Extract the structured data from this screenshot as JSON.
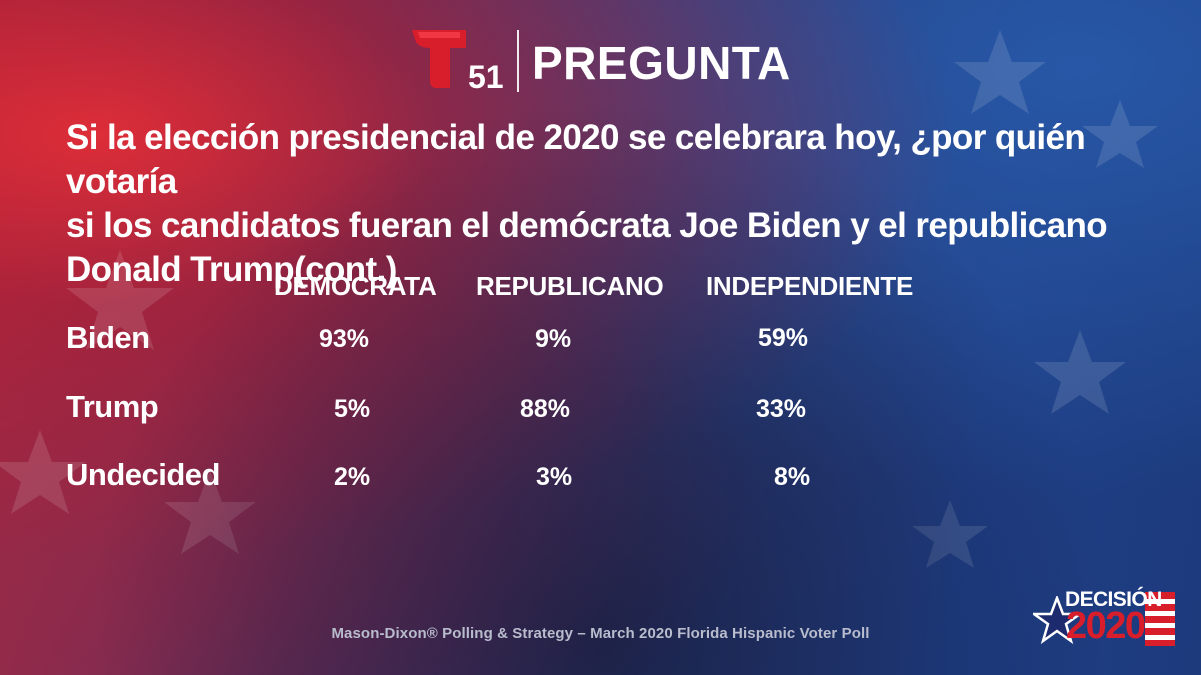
{
  "header": {
    "logo_number": "51",
    "title": "PREGUNTA"
  },
  "question": {
    "line1": "Si la elección presidencial de 2020 se celebrara hoy, ¿por quién votaría",
    "line2": "si los candidatos fueran el demócrata Joe Biden y el republicano",
    "line3": "Donald Trump(cont.)"
  },
  "table": {
    "columns": [
      "DEMOCRATA",
      "REPUBLICANO",
      "INDEPENDIENTE"
    ],
    "rows": [
      {
        "label": "Biden",
        "values": [
          "93%",
          "9%",
          "59%"
        ]
      },
      {
        "label": "Trump",
        "values": [
          "5%",
          "88%",
          "33%"
        ]
      },
      {
        "label": "Undecided",
        "values": [
          "2%",
          "3%",
          "8%"
        ]
      }
    ]
  },
  "footer": {
    "source": "Mason-Dixon® Polling & Strategy – March 2020 Florida Hispanic Voter Poll"
  },
  "badge": {
    "top": "DECISIÓN",
    "year": "2020"
  },
  "colors": {
    "brand_red": "#d81e2b",
    "text": "#ffffff",
    "footer_text": "#b8bccc"
  }
}
